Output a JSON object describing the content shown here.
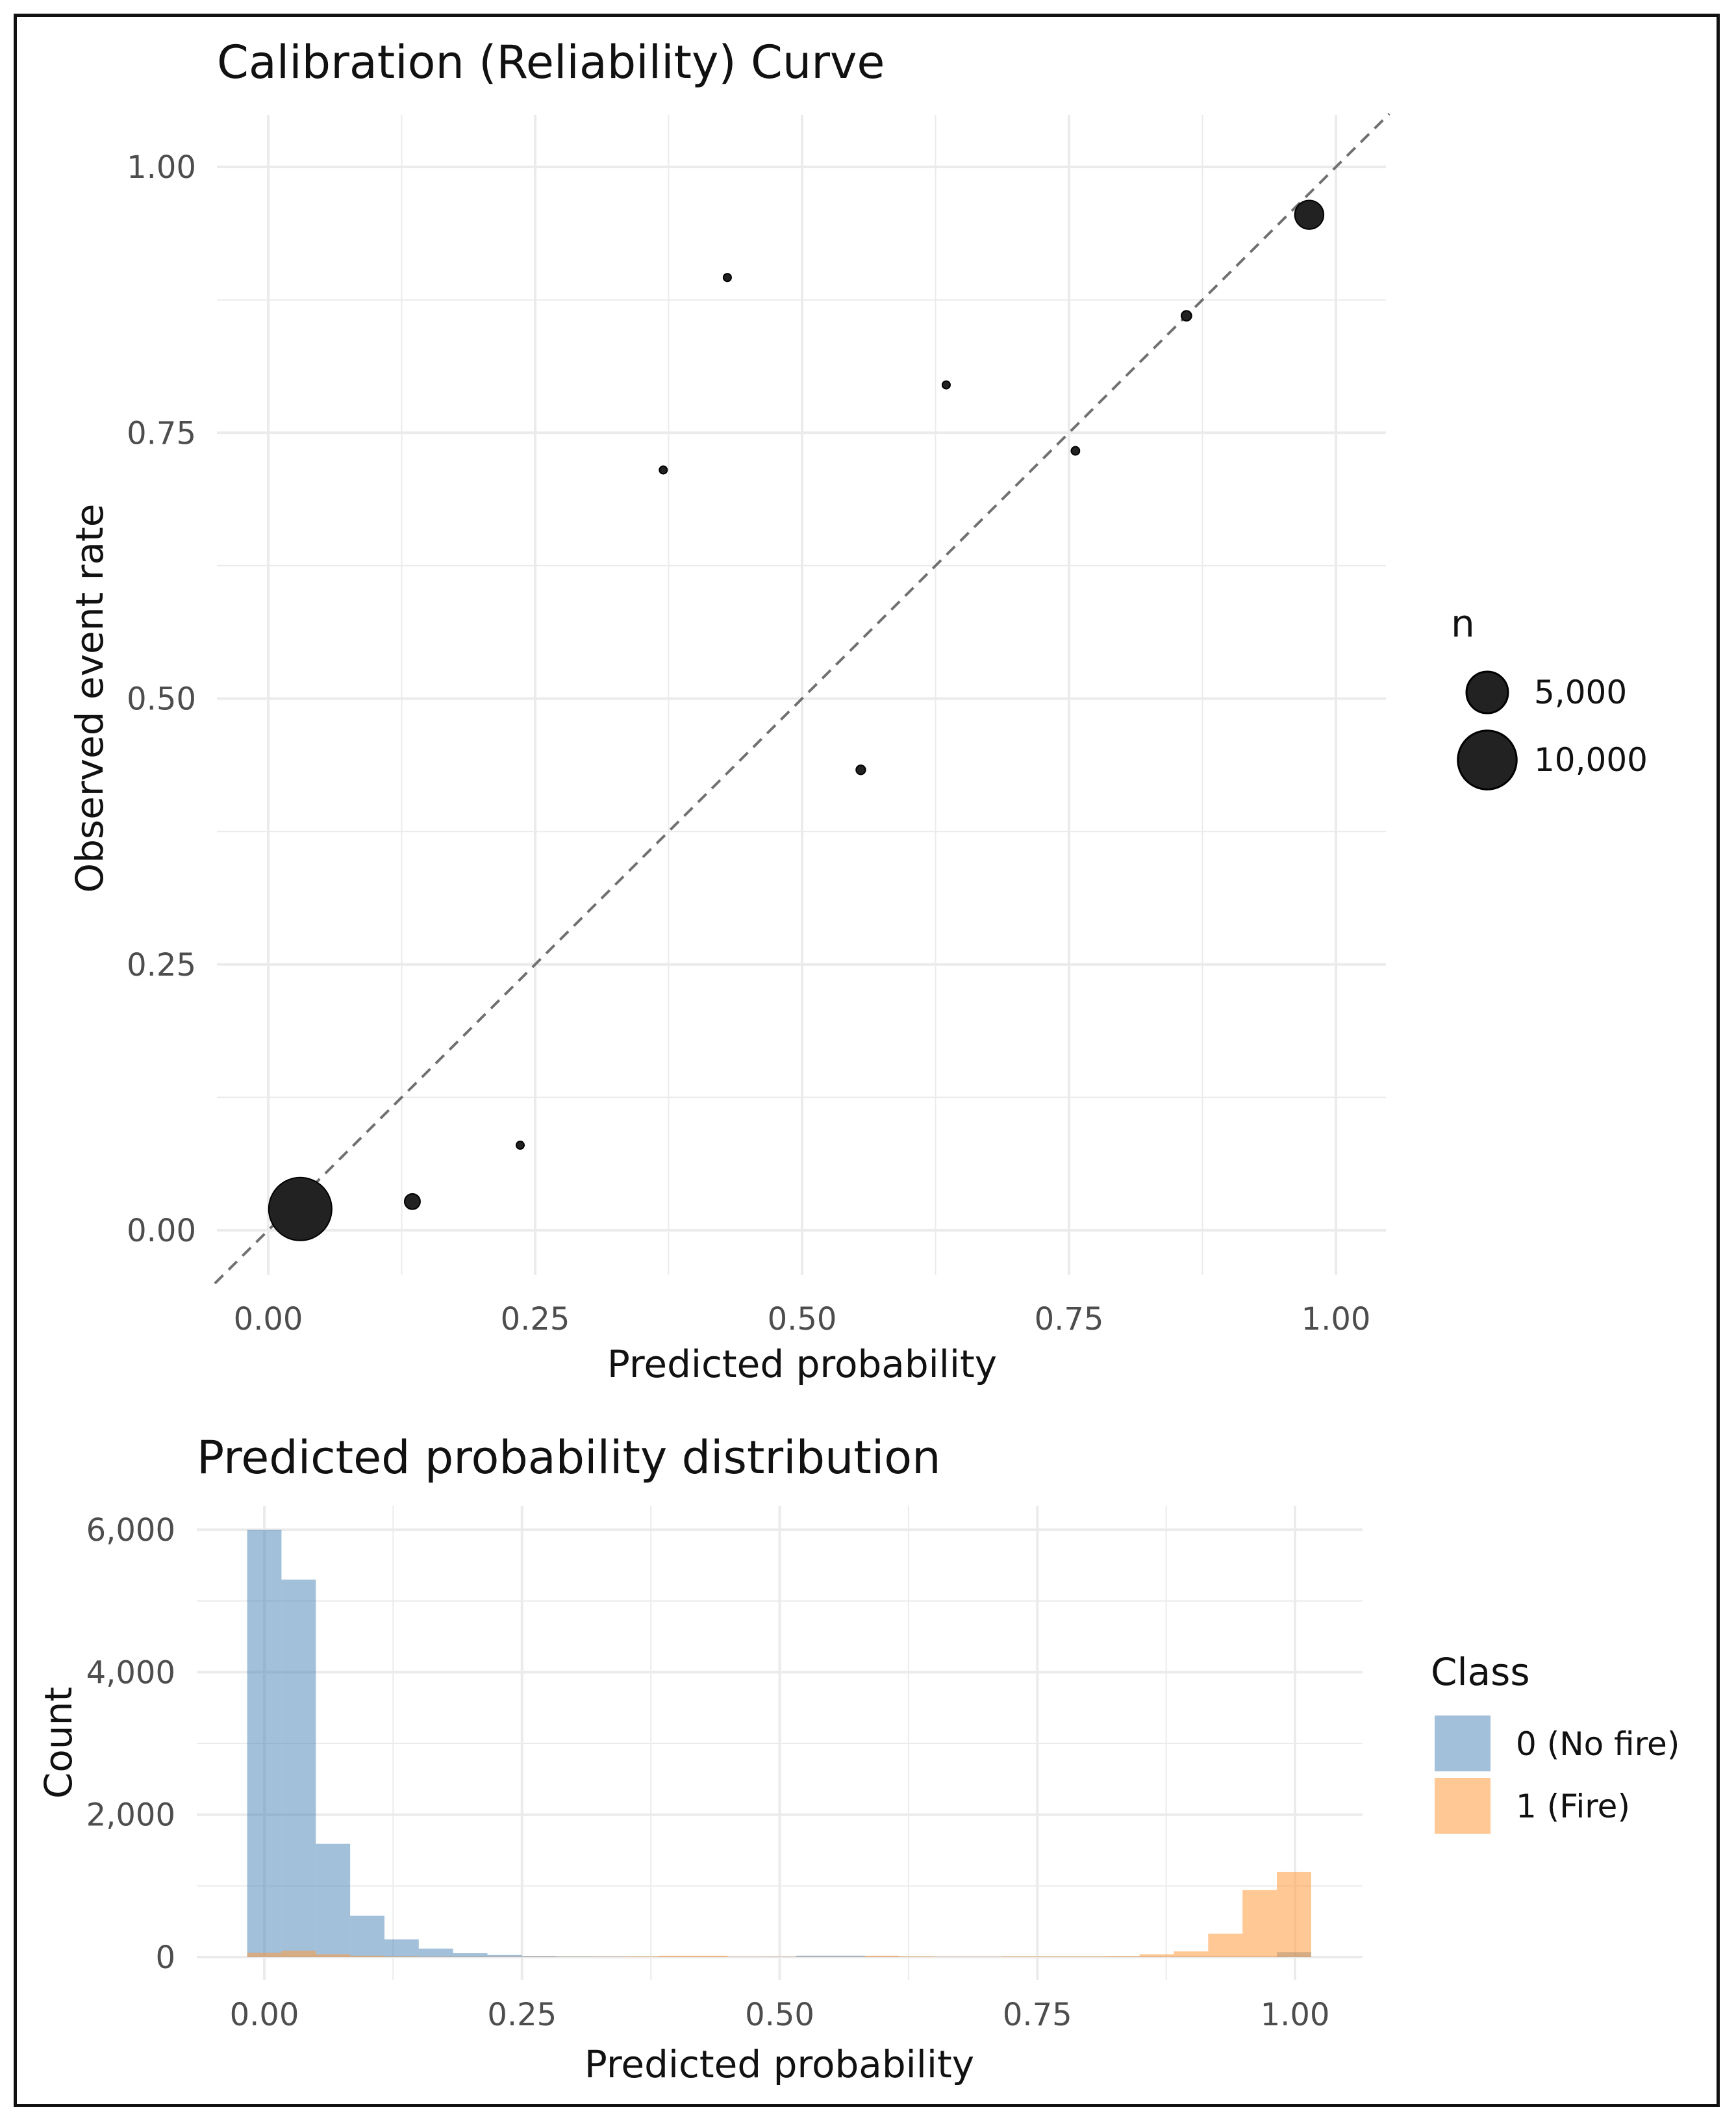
{
  "chart_data": [
    {
      "type": "scatter",
      "title": "Calibration (Reliability) Curve",
      "xlabel": "Predicted probability",
      "ylabel": "Observed event rate",
      "xlim": [
        -0.05,
        1.05
      ],
      "ylim": [
        -0.05,
        1.05
      ],
      "xticks": [
        "0.00",
        "0.25",
        "0.50",
        "0.75",
        "1.00"
      ],
      "yticks": [
        "0.00",
        "0.25",
        "0.50",
        "0.75",
        "1.00"
      ],
      "grid": true,
      "reference_line": "y = x (dashed)",
      "points": [
        {
          "x": 0.03,
          "y": 0.02,
          "n": 11500
        },
        {
          "x": 0.135,
          "y": 0.027,
          "n": 700
        },
        {
          "x": 0.236,
          "y": 0.08,
          "n": 150
        },
        {
          "x": 0.37,
          "y": 0.715,
          "n": 150
        },
        {
          "x": 0.43,
          "y": 0.896,
          "n": 120
        },
        {
          "x": 0.555,
          "y": 0.433,
          "n": 250
        },
        {
          "x": 0.635,
          "y": 0.795,
          "n": 150
        },
        {
          "x": 0.756,
          "y": 0.733,
          "n": 200
        },
        {
          "x": 0.86,
          "y": 0.86,
          "n": 300
        },
        {
          "x": 0.975,
          "y": 0.955,
          "n": 2400
        }
      ],
      "legend": {
        "title": "n",
        "entries": [
          {
            "label": "5,000",
            "n": 5000
          },
          {
            "label": "10,000",
            "n": 10000
          }
        ],
        "placement": "right"
      }
    },
    {
      "type": "bar",
      "subtype": "histogram",
      "title": "Predicted probability distribution",
      "xlabel": "Predicted probability",
      "ylabel": "Count",
      "xlim": [
        -0.05,
        1.07
      ],
      "ylim": [
        0,
        6000
      ],
      "xticks": [
        "0.00",
        "0.25",
        "0.50",
        "0.75",
        "1.00"
      ],
      "yticks": [
        "0",
        "2,000",
        "4,000",
        "6,000"
      ],
      "grid": true,
      "bin_width": 0.0333,
      "bin_centers_from": 0,
      "series": [
        {
          "name": "0 (No fire)",
          "color": "#4682b4",
          "values": [
            6000,
            5300,
            1590,
            580,
            250,
            120,
            55,
            30,
            15,
            10,
            8,
            6,
            5,
            5,
            5,
            6,
            20,
            20,
            8,
            5,
            5,
            5,
            5,
            5,
            5,
            5,
            5,
            5,
            5,
            5,
            70
          ]
        },
        {
          "name": "1 (Fire)",
          "color": "#ff9a3c",
          "values": [
            60,
            90,
            40,
            20,
            10,
            5,
            5,
            5,
            5,
            5,
            5,
            10,
            20,
            20,
            5,
            5,
            5,
            5,
            20,
            10,
            5,
            5,
            10,
            10,
            10,
            15,
            40,
            80,
            330,
            940,
            1195
          ]
        }
      ],
      "legend": {
        "title": "Class",
        "placement": "right"
      }
    }
  ]
}
